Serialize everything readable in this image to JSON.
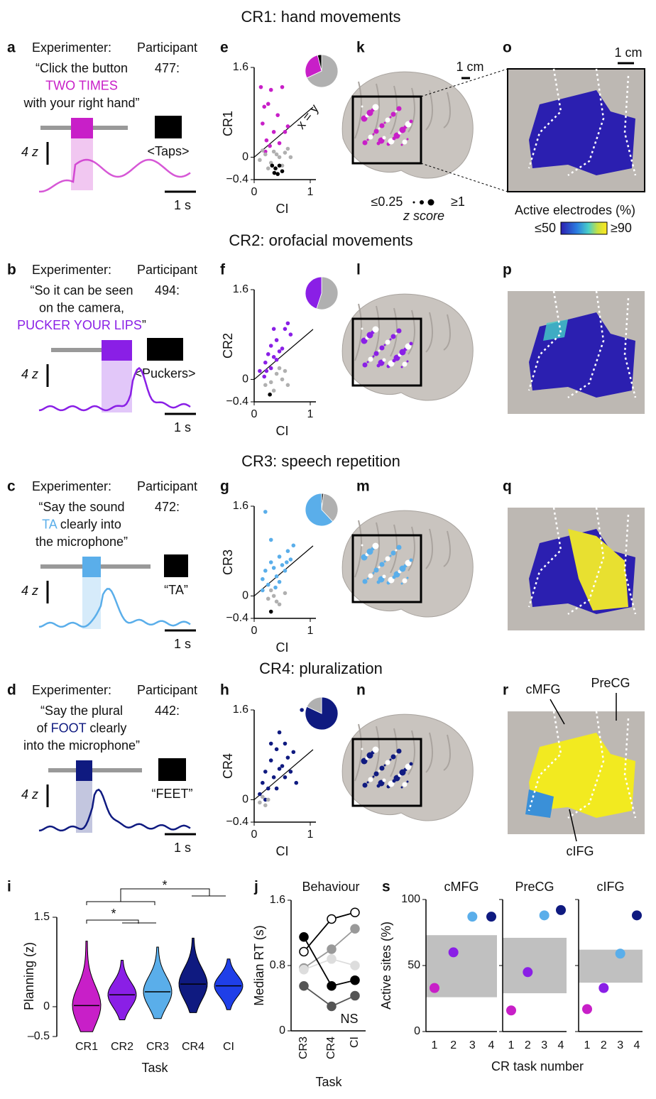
{
  "rows": [
    {
      "heading": "CR1: hand movements",
      "letters": [
        "a",
        "e",
        "k",
        "o"
      ],
      "experimenter": "Experimenter:",
      "participant": "Participant",
      "participant_id": "477:",
      "quote": [
        [
          {
            "text": "“Click the button"
          }
        ],
        [
          {
            "text": "TWO TIMES",
            "hl": true
          }
        ],
        [
          {
            "text": "with your right hand”"
          }
        ]
      ],
      "response": "<Taps>",
      "color": "#c81fc8"
    },
    {
      "heading": "CR2: orofacial movements",
      "letters": [
        "b",
        "f",
        "l",
        "p"
      ],
      "experimenter": "Experimenter:",
      "participant": "Participant",
      "participant_id": "494:",
      "quote": [
        [
          {
            "text": "“So it can be seen"
          }
        ],
        [
          {
            "text": "on the camera,"
          }
        ],
        [
          {
            "text": "PUCKER YOUR LIPS",
            "hl": true
          },
          {
            "text": "”"
          }
        ]
      ],
      "response": "<Puckers>",
      "color": "#8a1fe6"
    },
    {
      "heading": "CR3: speech repetition",
      "letters": [
        "c",
        "g",
        "m",
        "q"
      ],
      "experimenter": "Experimenter:",
      "participant": "Participant",
      "participant_id": "472:",
      "quote": [
        [
          {
            "text": "“Say the sound"
          }
        ],
        [
          {
            "text": "TA",
            "hl": true
          },
          {
            "text": " clearly into"
          }
        ],
        [
          {
            "text": "the microphone”"
          }
        ]
      ],
      "response": "“TA”",
      "color": "#5aaeea"
    },
    {
      "heading": "CR4: pluralization",
      "letters": [
        "d",
        "h",
        "n",
        "r"
      ],
      "experimenter": "Experimenter:",
      "participant": "Participant",
      "participant_id": "442:",
      "quote": [
        [
          {
            "text": "“Say the plural"
          }
        ],
        [
          {
            "text": "of "
          },
          {
            "text": "FOOT",
            "hl": true
          },
          {
            "text": " clearly"
          }
        ],
        [
          {
            "text": "into the microphone”"
          }
        ]
      ],
      "response": "“FEET”",
      "color": "#0f1a80"
    }
  ],
  "scale": {
    "z": "4 z",
    "s": "1 s",
    "cm": "1 cm"
  },
  "zscore_legend": {
    "low": "≤0.25",
    "high": "≥1",
    "label": "z score"
  },
  "colorbar": {
    "label": "Active electrodes (%)",
    "low": "≤50",
    "high": "≥90"
  },
  "regions": [
    "cMFG",
    "PreCG",
    "cIFG"
  ],
  "bottom_letters": [
    "i",
    "j",
    "s"
  ],
  "chart_data": [
    {
      "type": "scatter",
      "xlabel": "CI",
      "ylabel": "CR1",
      "annotation": "x = y",
      "xlim": [
        0,
        1
      ],
      "xticks": [
        0,
        1
      ],
      "ylim": [
        -0.4,
        1.6
      ],
      "yticks": [
        {
          "value": -0.4,
          "label": "−0.4"
        },
        0,
        1.6
      ],
      "series": [
        {
          "color": "#c81fc8",
          "x": [
            0.12,
            0.18,
            0.25,
            0.3,
            0.42,
            0.5,
            0.15,
            0.22,
            0.35,
            0.45,
            0.55,
            0.28,
            0.6,
            0.2
          ],
          "y": [
            1.25,
            0.9,
            0.95,
            1.2,
            0.75,
            1.25,
            0.6,
            0.3,
            0.45,
            0.25,
            0.45,
            0.2,
            0.55,
            0.1
          ]
        },
        {
          "color": "#b0b0b0",
          "x": [
            0.1,
            0.2,
            0.3,
            0.35,
            0.45,
            0.5,
            0.55,
            0.6,
            0.25,
            0.4,
            0.65,
            0.15
          ],
          "y": [
            -0.05,
            0.05,
            -0.1,
            0.1,
            0,
            -0.15,
            0.08,
            0.15,
            -0.2,
            0.05,
            0,
            0.12
          ]
        },
        {
          "color": "#000000",
          "x": [
            0.32,
            0.38,
            0.45,
            0.42,
            0.5,
            0.36
          ],
          "y": [
            -0.15,
            -0.2,
            -0.15,
            -0.3,
            -0.25,
            -0.28
          ]
        }
      ],
      "pie": {
        "values": [
          68,
          28,
          4
        ],
        "colors": [
          "#b0b0b0",
          "#c81fc8",
          "#000000"
        ]
      }
    },
    {
      "type": "scatter",
      "xlabel": "CI",
      "ylabel": "CR2",
      "xlim": [
        0,
        1
      ],
      "xticks": [
        0,
        1
      ],
      "ylim": [
        -0.4,
        1.6
      ],
      "yticks": [
        {
          "value": -0.4,
          "label": "−0.4"
        },
        0,
        1.6
      ],
      "series": [
        {
          "color": "#8a1fe6",
          "x": [
            0.1,
            0.2,
            0.25,
            0.3,
            0.35,
            0.4,
            0.45,
            0.5,
            0.55,
            0.6,
            0.65,
            0.3,
            0.22,
            0.18,
            0.4,
            0.35
          ],
          "y": [
            0.15,
            0.3,
            0.45,
            0.6,
            0.4,
            0.7,
            0.5,
            0.55,
            0.9,
            1.0,
            0.8,
            0.2,
            0.15,
            0.05,
            0.35,
            0.9
          ]
        },
        {
          "color": "#b0b0b0",
          "x": [
            0.2,
            0.3,
            0.4,
            0.5,
            0.55,
            0.6,
            0.35,
            0.45
          ],
          "y": [
            -0.1,
            -0.05,
            0.1,
            0,
            0.15,
            -0.1,
            -0.2,
            0.2
          ]
        },
        {
          "color": "#000000",
          "x": [
            0.28
          ],
          "y": [
            -0.27
          ]
        }
      ],
      "pie": {
        "values": [
          55,
          45
        ],
        "colors": [
          "#b0b0b0",
          "#8a1fe6"
        ]
      }
    },
    {
      "type": "scatter",
      "xlabel": "CI",
      "ylabel": "CR3",
      "xlim": [
        0,
        1
      ],
      "xticks": [
        0,
        1
      ],
      "ylim": [
        -0.4,
        1.6
      ],
      "yticks": [
        {
          "value": -0.4,
          "label": "−0.4"
        },
        0,
        1.6
      ],
      "series": [
        {
          "color": "#5aaeea",
          "x": [
            0.15,
            0.2,
            0.25,
            0.3,
            0.35,
            0.4,
            0.45,
            0.5,
            0.55,
            0.6,
            0.65,
            0.7,
            0.3,
            0.45,
            0.2,
            0.38,
            0.15,
            0.58
          ],
          "y": [
            0.3,
            0.45,
            0.2,
            0.6,
            0.5,
            0.35,
            0.7,
            0.55,
            0.45,
            0.8,
            0.65,
            0.9,
            1.0,
            0.25,
            1.5,
            0.15,
            0.1,
            0.6
          ]
        },
        {
          "color": "#b0b0b0",
          "x": [
            0.25,
            0.35,
            0.45,
            0.55,
            0.4,
            0.3
          ],
          "y": [
            -0.05,
            0,
            -0.15,
            0.05,
            -0.1,
            0.1
          ]
        },
        {
          "color": "#000000",
          "x": [
            0.3
          ],
          "y": [
            -0.28
          ]
        }
      ],
      "pie": {
        "values": [
          2,
          36,
          62
        ],
        "colors": [
          "#333333",
          "#b0b0b0",
          "#5aaeea"
        ]
      }
    },
    {
      "type": "scatter",
      "xlabel": "CI",
      "ylabel": "CR4",
      "xlim": [
        0,
        1
      ],
      "xticks": [
        0,
        1
      ],
      "ylim": [
        -0.4,
        1.6
      ],
      "yticks": [
        {
          "value": -0.4,
          "label": "−0.4"
        },
        0,
        1.6
      ],
      "series": [
        {
          "color": "#0f1a80",
          "x": [
            0.1,
            0.15,
            0.2,
            0.25,
            0.3,
            0.35,
            0.4,
            0.45,
            0.5,
            0.55,
            0.6,
            0.65,
            0.7,
            0.75,
            0.3,
            0.45,
            0.55,
            0.85,
            0.2,
            0.4
          ],
          "y": [
            0.1,
            0.3,
            0.5,
            0.2,
            0.7,
            0.4,
            0.9,
            0.55,
            0.6,
            1.0,
            0.75,
            0.5,
            0.85,
            0.3,
            1.0,
            1.2,
            0.4,
            1.6,
            0,
            0.2
          ]
        },
        {
          "color": "#b0b0b0",
          "x": [
            0.1,
            0.15,
            0.2,
            0.25
          ],
          "y": [
            -0.05,
            0.05,
            -0.1,
            0
          ]
        }
      ],
      "pie": {
        "values": [
          82,
          18
        ],
        "colors": [
          "#0f1a80",
          "#b0b0b0"
        ]
      }
    },
    {
      "type": "violin",
      "ylabel": "Planning (z)",
      "xlabel": "Task",
      "annotations": [
        "*",
        "*"
      ],
      "categories": [
        "CR1",
        "CR2",
        "CR3",
        "CR4",
        "CI"
      ],
      "values": [
        0.02,
        0.2,
        0.25,
        0.38,
        0.35
      ],
      "min": [
        -0.42,
        -0.22,
        -0.2,
        -0.1,
        -0.05
      ],
      "max": [
        1.1,
        0.78,
        1.0,
        1.15,
        0.8
      ],
      "colors": [
        "#c81fc8",
        "#8a1fe6",
        "#5aaeea",
        "#0f1a80",
        "#1f3fe8"
      ],
      "ylim": [
        -0.5,
        1.5
      ],
      "yticks": [
        {
          "value": -0.5,
          "label": "–0.5"
        },
        0,
        1.5
      ]
    },
    {
      "type": "line",
      "title": "Behaviour",
      "ylabel": "Median RT (s)",
      "xlabel": "Task",
      "annotation": "NS",
      "categories": [
        "CR3",
        "CR4",
        "CI"
      ],
      "ylim": [
        0,
        1.6
      ],
      "yticks": [
        0,
        0.8,
        1.6
      ],
      "series": [
        {
          "color": "#ffffff",
          "values": [
            0.97,
            1.37,
            1.45
          ]
        },
        {
          "color": "#999999",
          "values": [
            0.77,
            1.0,
            1.25
          ]
        },
        {
          "color": "#dddddd",
          "values": [
            0.75,
            0.88,
            0.8
          ]
        },
        {
          "color": "#000000",
          "values": [
            1.15,
            0.55,
            0.62
          ]
        },
        {
          "color": "#555555",
          "values": [
            0.55,
            0.3,
            0.43
          ]
        }
      ]
    },
    {
      "type": "dot",
      "title": "cMFG",
      "ylabel": "Active sites (%)",
      "categories": [
        "1",
        "2",
        "3",
        "4"
      ],
      "values": [
        33,
        60,
        87,
        87
      ],
      "band": [
        26,
        73
      ],
      "colors": [
        "#c81fc8",
        "#8a1fe6",
        "#5aaeea",
        "#0f1a80"
      ],
      "ylim": [
        0,
        100
      ],
      "yticks": [
        0,
        50,
        100
      ]
    },
    {
      "type": "dot",
      "title": "PreCG",
      "xlabel": "CR task number",
      "categories": [
        "1",
        "2",
        "3",
        "4"
      ],
      "values": [
        16,
        45,
        88,
        92
      ],
      "band": [
        29,
        71
      ],
      "colors": [
        "#c81fc8",
        "#8a1fe6",
        "#5aaeea",
        "#0f1a80"
      ],
      "ylim": [
        0,
        100
      ],
      "yticks": [
        0,
        50,
        100
      ]
    },
    {
      "type": "dot",
      "title": "cIFG",
      "categories": [
        "1",
        "2",
        "3",
        "4"
      ],
      "values": [
        17,
        33,
        59,
        88
      ],
      "band": [
        37,
        62
      ],
      "colors": [
        "#c81fc8",
        "#8a1fe6",
        "#5aaeea",
        "#0f1a80"
      ],
      "ylim": [
        0,
        100
      ],
      "yticks": [
        0,
        50,
        100
      ]
    }
  ]
}
